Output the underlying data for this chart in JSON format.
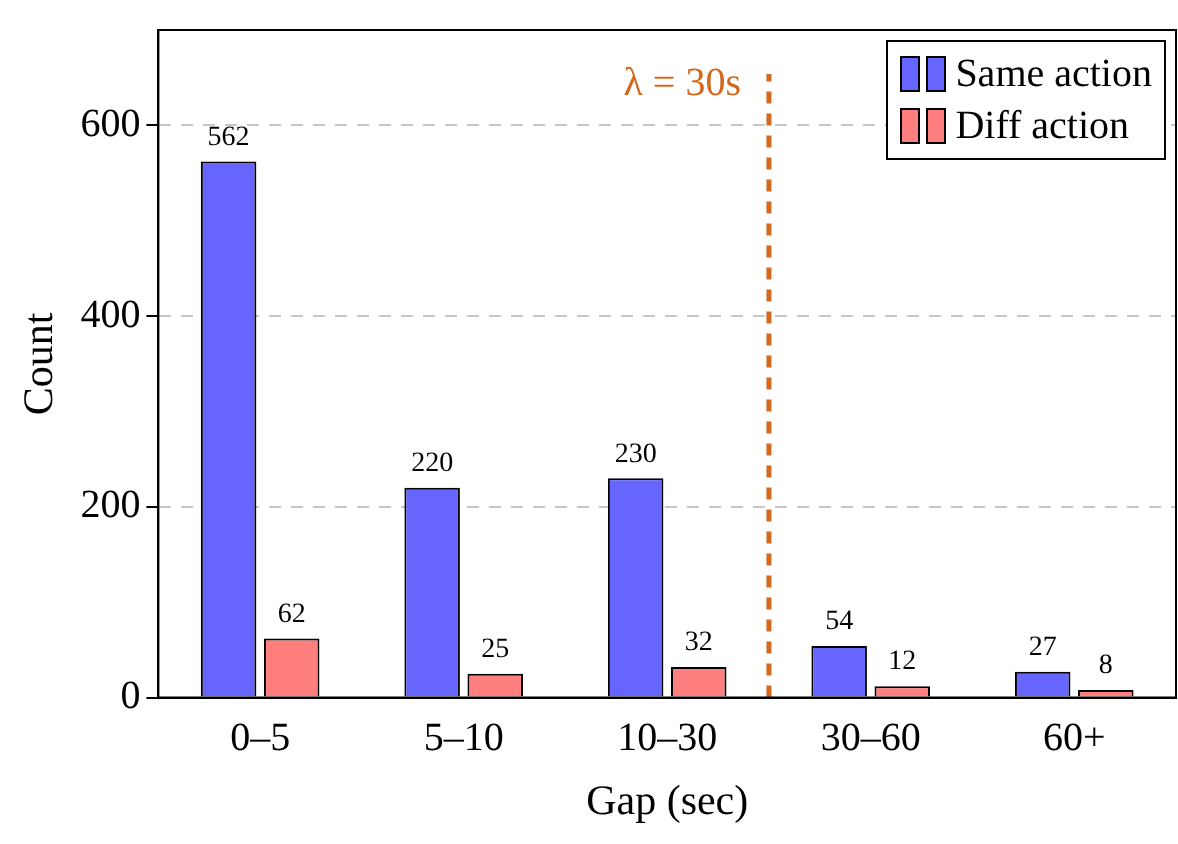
{
  "chart_data": {
    "type": "bar",
    "xlabel": "Gap (sec)",
    "ylabel": "Count",
    "categories": [
      "0–5",
      "5–10",
      "10–30",
      "30–60",
      "60+"
    ],
    "series": [
      {
        "name": "Same action",
        "color": "#6666ff",
        "values": [
          562,
          220,
          230,
          54,
          27
        ]
      },
      {
        "name": "Diff action",
        "color": "#ff7f7f",
        "values": [
          62,
          25,
          32,
          12,
          8
        ]
      }
    ],
    "ylim": [
      0,
      700
    ],
    "yticks": [
      0,
      200,
      400,
      600
    ],
    "grid": "y",
    "legend": "top right",
    "data_labels": true,
    "ref_lines": [
      {
        "axis": "x",
        "value": "30–60",
        "label": "λ = 30s",
        "color": "#d2691e",
        "line_style": "dashed"
      }
    ]
  }
}
